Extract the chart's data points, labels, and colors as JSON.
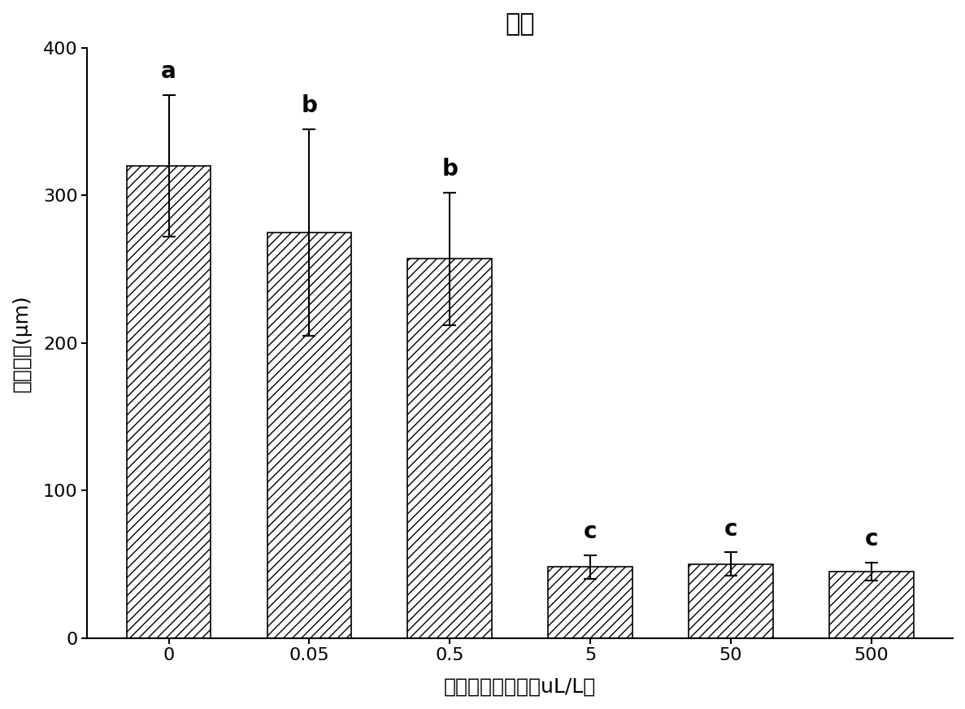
{
  "title": "己醛",
  "xlabel": "挥发性物质浓度（uL/L）",
  "ylabel": "菌体长度(μm)",
  "categories": [
    "0",
    "0.05",
    "0.5",
    "5",
    "50",
    "500"
  ],
  "values": [
    320,
    275,
    257,
    48,
    50,
    45
  ],
  "errors": [
    48,
    70,
    45,
    8,
    8,
    6
  ],
  "letters": [
    "a",
    "b",
    "b",
    "c",
    "c",
    "c"
  ],
  "ylim": [
    0,
    400
  ],
  "yticks": [
    0,
    100,
    200,
    300,
    400
  ],
  "bar_color": "#ffffff",
  "hatch": "///",
  "edgecolor": "#000000",
  "title_fontsize": 22,
  "label_fontsize": 18,
  "tick_fontsize": 16,
  "letter_fontsize": 20
}
